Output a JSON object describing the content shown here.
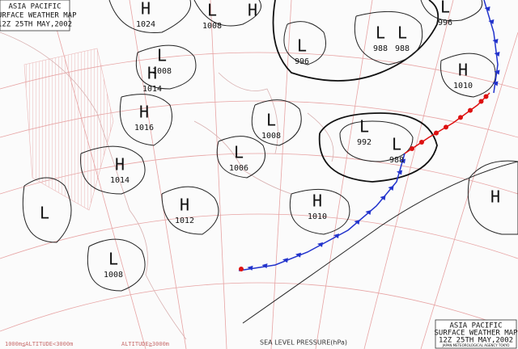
{
  "header": {
    "line1": "ASIA PACIFIC",
    "line2": "SURFACE WEATHER MAP",
    "line3": "12Z 25TH MAY,2002"
  },
  "footer_box": {
    "line1": "ASIA PACIFIC",
    "line2": "SURFACE WEATHER MAP",
    "line3": "12Z 25TH MAY,2002",
    "agency": "JAPAN METEOROLOGICAL AGENCY TOKYO"
  },
  "pressure_centers": [
    {
      "letter": "H",
      "value": 1024
    },
    {
      "letter": "L",
      "value": 1008
    },
    {
      "letter": "H",
      "value": null
    },
    {
      "letter": "L",
      "value": 1008
    },
    {
      "letter": "H",
      "value": 1014
    },
    {
      "letter": "H",
      "value": 1016
    },
    {
      "letter": "H",
      "value": 1014
    },
    {
      "letter": "L",
      "value": null
    },
    {
      "letter": "H",
      "value": 1012
    },
    {
      "letter": "L",
      "value": 1008
    },
    {
      "letter": "L",
      "value": 1008
    },
    {
      "letter": "L",
      "value": 1006
    },
    {
      "letter": "L",
      "value": 996
    },
    {
      "letter": "L",
      "value": 988
    },
    {
      "letter": "L",
      "value": 988
    },
    {
      "letter": "L",
      "value": 992
    },
    {
      "letter": "L",
      "value": 988
    },
    {
      "letter": "H",
      "value": 1010
    },
    {
      "letter": "H",
      "value": 1010
    },
    {
      "letter": "H",
      "value": null
    },
    {
      "letter": "L",
      "value": 996
    }
  ],
  "legend": {
    "altitude_low": "1000m≦ALTITUDE<3000m",
    "altitude_high": "ALTITUDE≧3000m",
    "axis_label": "SEA LEVEL PRESSURE(hPa)"
  }
}
